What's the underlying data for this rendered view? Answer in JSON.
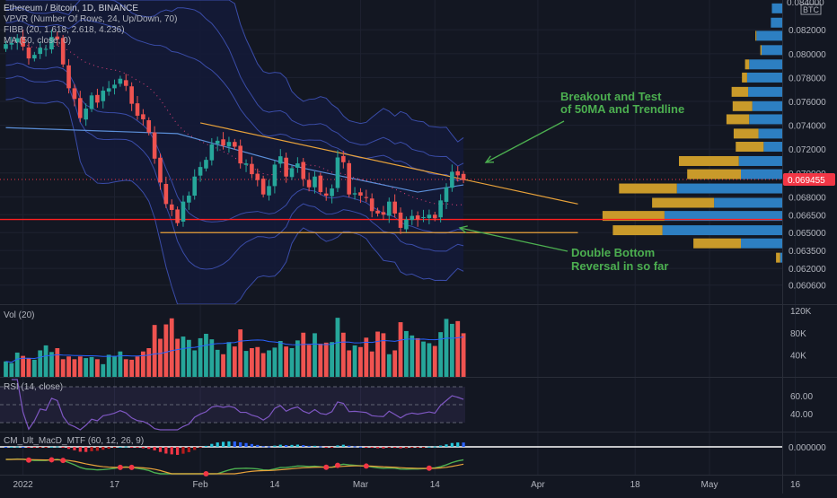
{
  "colors": {
    "background": "#131722",
    "bb_fill": "#141a37",
    "bb_line": "#3a4ca8",
    "grid": "#1e2230",
    "up": "#26a69a",
    "down": "#ef5350",
    "trend": "#e8a23a",
    "support": "#ff1f1f",
    "annotation": "#4caf50",
    "ma50": "#5b8fd9",
    "vp_up": "#2d7fc2",
    "vp_down": "#c99a2a",
    "price_tag": "#f23645",
    "axis_text": "#b2b5be",
    "rsi_line": "#7e57c2",
    "macd_fast": "#4caf50",
    "macd_slow": "#e8a23a",
    "macd_cross": "#f23645"
  },
  "legend": {
    "symbol": "Ethereum / Bitcoin, 1D, BINANCE",
    "vpvr": "VPVR (Number Of Rows, 24, Up/Down, 70)",
    "bb": "FIBB (20, 1.618, 2.618, 4.236)",
    "ma": "MA (50, close, 0)"
  },
  "panes": {
    "volume_label": "Vol (20)",
    "rsi_label": "RSI (14, close)",
    "macd_label": "CM_Ult_MacD_MTF (60, 12, 26, 9)"
  },
  "annotations": {
    "breakout_line1": "Breakout and Test",
    "breakout_line2": "of 50MA and Trendline",
    "double_line1": "Double Bottom",
    "double_line2": "Reversal in so far"
  },
  "price_axis": {
    "currency": "BTC",
    "current_price_label": "0.069455",
    "top_partial_label": "0.084000"
  },
  "chart_data": {
    "type": "candlestick",
    "title": "Ethereum / Bitcoin, 1D, BINANCE",
    "start_date": "2021-12-29",
    "x_tick_labels": [
      {
        "label": "2022",
        "date": "2022-01-01"
      },
      {
        "label": "17",
        "date": "2022-01-17"
      },
      {
        "label": "Feb",
        "date": "2022-02-01"
      },
      {
        "label": "14",
        "date": "2022-02-14"
      },
      {
        "label": "Mar",
        "date": "2022-03-01"
      },
      {
        "label": "14",
        "date": "2022-03-14"
      },
      {
        "label": "Apr",
        "date": "2022-04-01"
      },
      {
        "label": "18",
        "date": "2022-04-18"
      },
      {
        "label": "May",
        "date": "2022-05-01"
      },
      {
        "label": "16",
        "date": "2022-05-16"
      }
    ],
    "y_ticks": [
      0.0606,
      0.062,
      0.0635,
      0.065,
      0.0665,
      0.068,
      0.07,
      0.072,
      0.074,
      0.076,
      0.078,
      0.08,
      0.082
    ],
    "ylim": [
      0.059,
      0.0845
    ],
    "current_price": 0.069455,
    "closes": [
      0.0808,
      0.0809,
      0.0813,
      0.0806,
      0.0796,
      0.0799,
      0.0805,
      0.0804,
      0.0814,
      0.0812,
      0.0791,
      0.0771,
      0.0762,
      0.0746,
      0.0754,
      0.0765,
      0.0759,
      0.0769,
      0.0771,
      0.0774,
      0.0779,
      0.0773,
      0.0758,
      0.0748,
      0.0745,
      0.0734,
      0.0712,
      0.0692,
      0.0674,
      0.0669,
      0.0658,
      0.0676,
      0.0681,
      0.0697,
      0.0705,
      0.0711,
      0.0724,
      0.0727,
      0.0723,
      0.0726,
      0.0722,
      0.0708,
      0.0708,
      0.0699,
      0.0694,
      0.0682,
      0.0689,
      0.0707,
      0.0714,
      0.0697,
      0.0704,
      0.0708,
      0.0695,
      0.0688,
      0.0697,
      0.0684,
      0.0681,
      0.0687,
      0.0713,
      0.0709,
      0.0682,
      0.0683,
      0.0681,
      0.0679,
      0.0668,
      0.0666,
      0.0665,
      0.0676,
      0.0666,
      0.0654,
      0.0661,
      0.0664,
      0.0661,
      0.0663,
      0.0665,
      0.0662,
      0.0677,
      0.0688,
      0.0701,
      0.0698,
      0.0694
    ],
    "volume_values_k": [
      28,
      25,
      44,
      38,
      34,
      31,
      48,
      57,
      45,
      52,
      32,
      37,
      32,
      37,
      34,
      36,
      32,
      23,
      40,
      38,
      46,
      32,
      31,
      37,
      46,
      52,
      94,
      69,
      95,
      106,
      69,
      73,
      67,
      48,
      70,
      78,
      68,
      49,
      41,
      63,
      55,
      86,
      47,
      52,
      54,
      43,
      48,
      53,
      65,
      55,
      52,
      66,
      80,
      58,
      79,
      60,
      62,
      63,
      107,
      80,
      48,
      57,
      54,
      71,
      46,
      82,
      79,
      41,
      48,
      99,
      83,
      75,
      70,
      64,
      61,
      56,
      81,
      105,
      96,
      101,
      79
    ],
    "volume_ticks": [
      "120K",
      "80K",
      "40K"
    ],
    "rsi_ticks": [
      "60.00",
      "40.00"
    ],
    "macd_ticks": [
      "0.000000"
    ],
    "ma50_anchor_points": [
      [
        0,
        0.0738
      ],
      [
        30,
        0.0733
      ],
      [
        52,
        0.0704
      ],
      [
        72,
        0.0684
      ],
      [
        80,
        0.069
      ]
    ],
    "trendline": {
      "from": [
        34,
        0.0742
      ],
      "to": [
        100,
        0.0674
      ]
    },
    "bottom_line": {
      "from": [
        27,
        0.065
      ],
      "to": [
        100,
        0.065
      ]
    },
    "support_line": 0.0661,
    "volume_profile": [
      {
        "price": 0.0838,
        "up": 0.0,
        "down": 0.5
      },
      {
        "price": 0.0826,
        "up": 0.0,
        "down": 0.55
      },
      {
        "price": 0.0815,
        "up": 0.05,
        "down": 1.25
      },
      {
        "price": 0.0803,
        "up": 0.06,
        "down": 1.0
      },
      {
        "price": 0.0791,
        "up": 0.2,
        "down": 1.6
      },
      {
        "price": 0.078,
        "up": 0.25,
        "down": 1.7
      },
      {
        "price": 0.0768,
        "up": 0.8,
        "down": 1.65
      },
      {
        "price": 0.0756,
        "up": 0.95,
        "down": 1.45
      },
      {
        "price": 0.0745,
        "up": 1.1,
        "down": 1.6
      },
      {
        "price": 0.0733,
        "up": 1.2,
        "down": 1.15
      },
      {
        "price": 0.0722,
        "up": 1.35,
        "down": 0.9
      },
      {
        "price": 0.071,
        "up": 2.9,
        "down": 2.1
      },
      {
        "price": 0.0699,
        "up": 2.6,
        "down": 2.0
      },
      {
        "price": 0.0687,
        "up": 2.8,
        "down": 5.1
      },
      {
        "price": 0.0675,
        "up": 3.0,
        "down": 3.3
      },
      {
        "price": 0.0664,
        "up": 3.0,
        "down": 5.7
      },
      {
        "price": 0.0652,
        "up": 2.4,
        "down": 5.8
      },
      {
        "price": 0.0641,
        "up": 2.3,
        "down": 2.0
      },
      {
        "price": 0.0629,
        "up": 0.2,
        "down": 0.1
      }
    ]
  }
}
